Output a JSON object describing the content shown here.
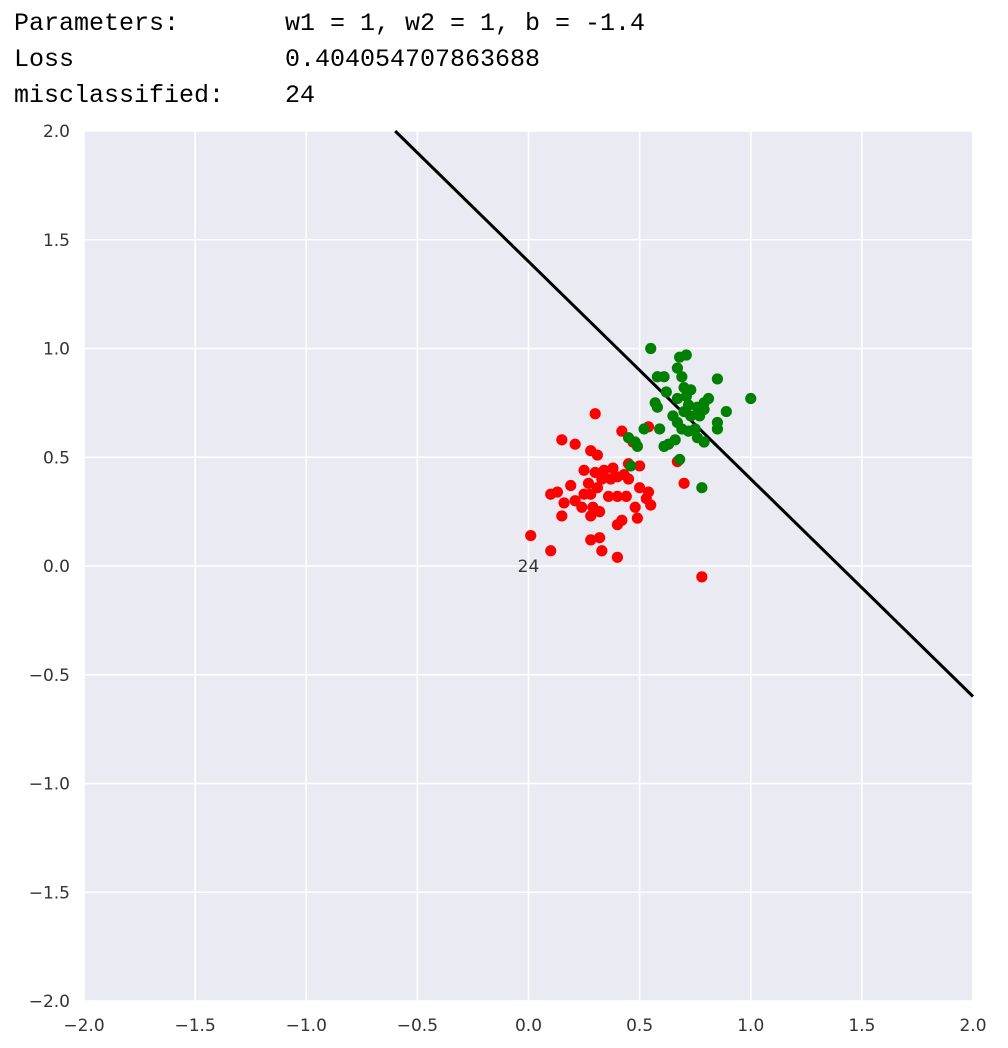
{
  "header": {
    "parameters_label": "Parameters:",
    "parameters_value": "w1 = 1, w2 = 1, b = -1.4",
    "loss_label": "Loss",
    "loss_value": "0.404054707863688",
    "misclassified_label": "misclassified:",
    "misclassified_value": "24"
  },
  "chart_data": {
    "type": "scatter",
    "title": "",
    "xlabel": "",
    "ylabel": "",
    "xlim": [
      -2.0,
      2.0
    ],
    "ylim": [
      -2.0,
      2.0
    ],
    "xticks": [
      "−2.0",
      "−1.5",
      "−1.0",
      "−0.5",
      "0.0",
      "0.5",
      "1.0",
      "1.5",
      "2.0"
    ],
    "yticks": [
      "2.0",
      "1.5",
      "1.0",
      "0.5",
      "0.0",
      "−0.5",
      "−1.0",
      "−1.5",
      "−2.0"
    ],
    "grid": true,
    "background_color": "#eaeaf2",
    "grid_color": "#ffffff",
    "series": [
      {
        "color": "#ff0000",
        "points": [
          [
            0.3,
            0.7
          ],
          [
            0.15,
            0.58
          ],
          [
            0.21,
            0.56
          ],
          [
            0.28,
            0.53
          ],
          [
            0.31,
            0.51
          ],
          [
            0.42,
            0.62
          ],
          [
            0.47,
            0.57
          ],
          [
            0.45,
            0.47
          ],
          [
            0.5,
            0.46
          ],
          [
            0.54,
            0.64
          ],
          [
            0.67,
            0.48
          ],
          [
            0.7,
            0.38
          ],
          [
            0.78,
            -0.05
          ],
          [
            0.25,
            0.44
          ],
          [
            0.3,
            0.43
          ],
          [
            0.34,
            0.44
          ],
          [
            0.38,
            0.45
          ],
          [
            0.43,
            0.42
          ],
          [
            0.33,
            0.4
          ],
          [
            0.37,
            0.4
          ],
          [
            0.4,
            0.41
          ],
          [
            0.19,
            0.37
          ],
          [
            0.27,
            0.38
          ],
          [
            0.31,
            0.36
          ],
          [
            0.45,
            0.4
          ],
          [
            0.5,
            0.36
          ],
          [
            0.54,
            0.34
          ],
          [
            0.1,
            0.33
          ],
          [
            0.13,
            0.34
          ],
          [
            0.25,
            0.33
          ],
          [
            0.28,
            0.33
          ],
          [
            0.36,
            0.32
          ],
          [
            0.4,
            0.32
          ],
          [
            0.44,
            0.32
          ],
          [
            0.53,
            0.31
          ],
          [
            0.16,
            0.29
          ],
          [
            0.21,
            0.3
          ],
          [
            0.24,
            0.27
          ],
          [
            0.29,
            0.27
          ],
          [
            0.32,
            0.25
          ],
          [
            0.48,
            0.27
          ],
          [
            0.55,
            0.28
          ],
          [
            0.15,
            0.23
          ],
          [
            0.28,
            0.23
          ],
          [
            0.49,
            0.22
          ],
          [
            0.4,
            0.19
          ],
          [
            0.42,
            0.21
          ],
          [
            0.01,
            0.14
          ],
          [
            0.28,
            0.12
          ],
          [
            0.32,
            0.13
          ],
          [
            0.1,
            0.07
          ],
          [
            0.33,
            0.07
          ],
          [
            0.4,
            0.04
          ]
        ]
      },
      {
        "color": "#008000",
        "points": [
          [
            0.55,
            1.0
          ],
          [
            0.68,
            0.96
          ],
          [
            0.71,
            0.97
          ],
          [
            0.67,
            0.91
          ],
          [
            0.58,
            0.87
          ],
          [
            0.61,
            0.87
          ],
          [
            0.69,
            0.87
          ],
          [
            0.85,
            0.86
          ],
          [
            0.7,
            0.82
          ],
          [
            0.62,
            0.8
          ],
          [
            0.73,
            0.81
          ],
          [
            0.67,
            0.77
          ],
          [
            0.71,
            0.78
          ],
          [
            0.79,
            0.75
          ],
          [
            0.81,
            0.77
          ],
          [
            1.0,
            0.77
          ],
          [
            0.57,
            0.75
          ],
          [
            0.58,
            0.73
          ],
          [
            0.72,
            0.74
          ],
          [
            0.76,
            0.73
          ],
          [
            0.7,
            0.71
          ],
          [
            0.79,
            0.72
          ],
          [
            0.89,
            0.71
          ],
          [
            0.65,
            0.69
          ],
          [
            0.73,
            0.69
          ],
          [
            0.77,
            0.69
          ],
          [
            0.67,
            0.66
          ],
          [
            0.85,
            0.66
          ],
          [
            0.52,
            0.63
          ],
          [
            0.59,
            0.63
          ],
          [
            0.69,
            0.63
          ],
          [
            0.72,
            0.62
          ],
          [
            0.75,
            0.63
          ],
          [
            0.85,
            0.63
          ],
          [
            0.45,
            0.59
          ],
          [
            0.48,
            0.57
          ],
          [
            0.49,
            0.55
          ],
          [
            0.61,
            0.55
          ],
          [
            0.63,
            0.56
          ],
          [
            0.66,
            0.58
          ],
          [
            0.76,
            0.59
          ],
          [
            0.79,
            0.57
          ],
          [
            0.46,
            0.46
          ],
          [
            0.68,
            0.49
          ],
          [
            0.78,
            0.36
          ]
        ]
      }
    ],
    "decision_line": {
      "w1": 1,
      "w2": 1,
      "b": -1.4,
      "color": "#000000"
    },
    "annotations": [
      {
        "text": "24",
        "x": 0.0,
        "y": 0.0
      }
    ]
  }
}
